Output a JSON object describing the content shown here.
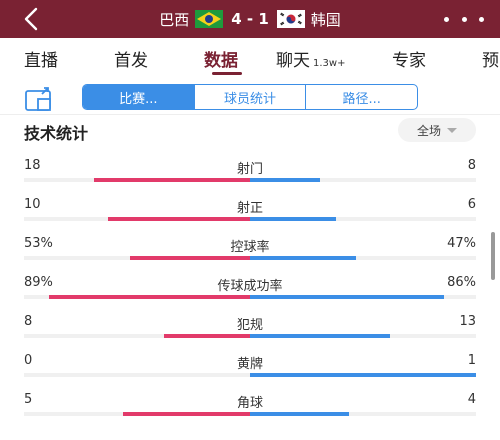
{
  "header": {
    "home_team": "巴西",
    "away_team": "韩国",
    "score": "4 - 1",
    "bg_color": "#7a2233",
    "back_icon": "chevron-left-icon",
    "more_icon": "more-dots-icon"
  },
  "tabs": [
    {
      "label": "直播",
      "badge": ""
    },
    {
      "label": "首发",
      "badge": ""
    },
    {
      "label": "数据",
      "badge": "",
      "active": true
    },
    {
      "label": "聊天",
      "badge": "1.3w+"
    },
    {
      "label": "专家",
      "badge": ""
    },
    {
      "label": "预",
      "badge": ""
    }
  ],
  "subtabs": [
    {
      "label": "比赛...",
      "active": true
    },
    {
      "label": "球员统计"
    },
    {
      "label": "路径..."
    }
  ],
  "section": {
    "title": "技术统计",
    "scope": "全场"
  },
  "colors": {
    "home_bar": "#e23a6a",
    "away_bar": "#3b8ee6"
  },
  "stats": [
    {
      "name": "射门",
      "home": "18",
      "away": "8",
      "home_share": 0.69,
      "away_share": 0.31
    },
    {
      "name": "射正",
      "home": "10",
      "away": "6",
      "home_share": 0.63,
      "away_share": 0.38
    },
    {
      "name": "控球率",
      "home": "53%",
      "away": "47%",
      "home_share": 0.53,
      "away_share": 0.47
    },
    {
      "name": "传球成功率",
      "home": "89%",
      "away": "86%",
      "home_share": 0.89,
      "away_share": 0.86
    },
    {
      "name": "犯规",
      "home": "8",
      "away": "13",
      "home_share": 0.38,
      "away_share": 0.62
    },
    {
      "name": "黄牌",
      "home": "0",
      "away": "1",
      "home_share": 0.0,
      "away_share": 1.0
    },
    {
      "name": "角球",
      "home": "5",
      "away": "4",
      "home_share": 0.56,
      "away_share": 0.44
    }
  ]
}
